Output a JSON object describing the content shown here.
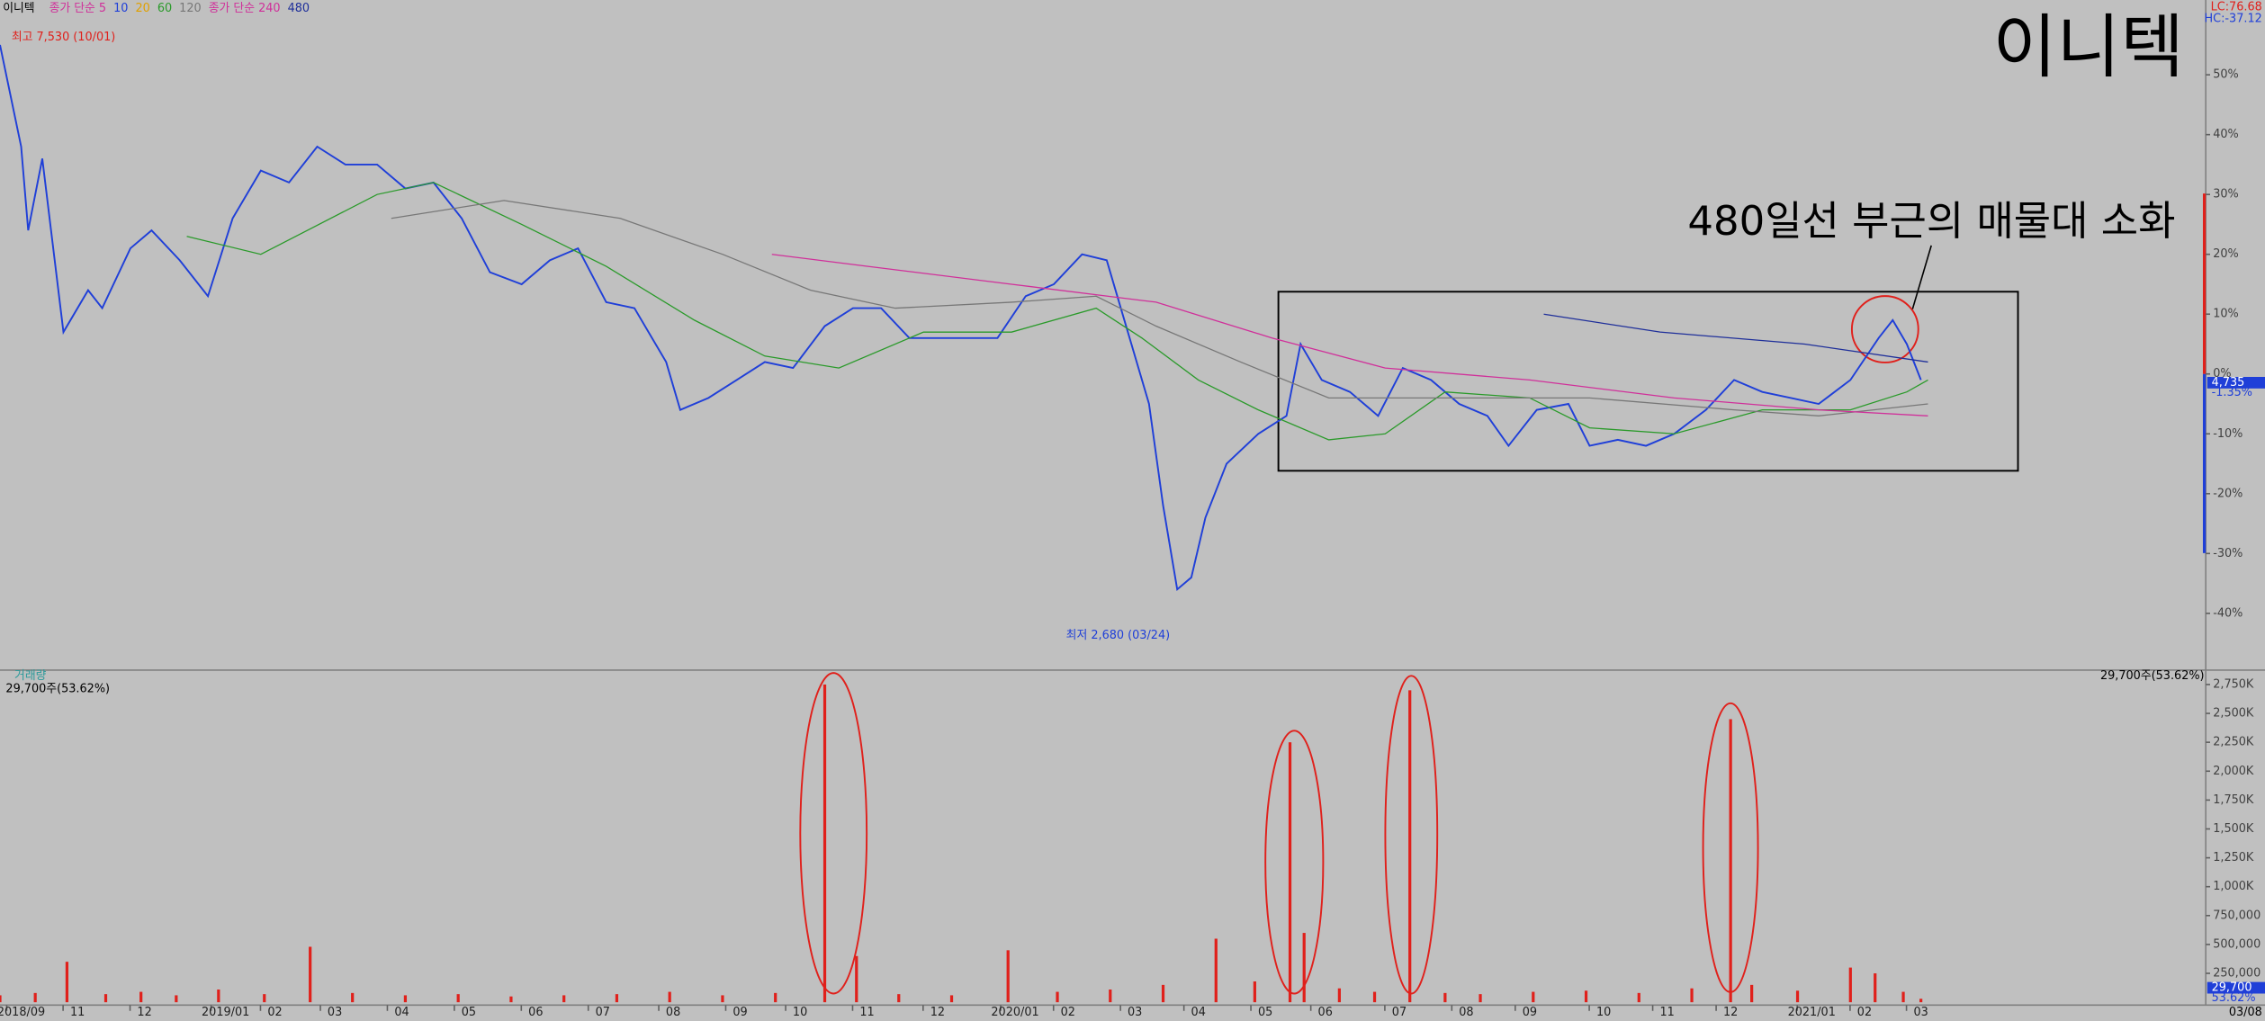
{
  "header": "이니텍",
  "legend": [
    {
      "label": "종가 단순 5",
      "color": "#d0309a"
    },
    {
      "label": "10",
      "color": "#1f3fd8"
    },
    {
      "label": "20",
      "color": "#e0a000"
    },
    {
      "label": "60",
      "color": "#2a9a2a"
    },
    {
      "label": "120",
      "color": "#777777"
    },
    {
      "label": "종가 단순 240",
      "color": "#d0309a"
    },
    {
      "label": "480",
      "color": "#1f2f9a"
    }
  ],
  "lc_label": "LC:76.68",
  "hc_label": "HC:-37.12",
  "chart_data": [
    {
      "type": "line",
      "title": "이니텍",
      "annotation": "480일선 부근의 매물대 소화",
      "high_label": "최고 7,530 (10/01)",
      "low_label": "최저 2,680 (03/24)",
      "last_price_label": "4,735",
      "last_change_label": "-1.35%",
      "xlim": [
        0,
        625
      ],
      "ylim": [
        -49,
        62.5
      ],
      "yticks": [
        {
          "value": 50,
          "label": "50%"
        },
        {
          "value": 40,
          "label": "40%"
        },
        {
          "value": 30,
          "label": "30%"
        },
        {
          "value": 20,
          "label": "20%"
        },
        {
          "value": 10,
          "label": "10%"
        },
        {
          "value": 0,
          "label": "0%"
        },
        {
          "value": -10,
          "label": "-10%"
        },
        {
          "value": -20,
          "label": "-20%"
        },
        {
          "value": -30,
          "label": "-30%"
        },
        {
          "value": -40,
          "label": "-40%"
        }
      ],
      "xticks": [
        {
          "value": 6,
          "label": "2018/09"
        },
        {
          "value": 22,
          "label": "11"
        },
        {
          "value": 41,
          "label": "12"
        },
        {
          "value": 64,
          "label": "2019/01"
        },
        {
          "value": 78,
          "label": "02"
        },
        {
          "value": 95,
          "label": "03"
        },
        {
          "value": 114,
          "label": "04"
        },
        {
          "value": 133,
          "label": "05"
        },
        {
          "value": 152,
          "label": "06"
        },
        {
          "value": 171,
          "label": "07"
        },
        {
          "value": 191,
          "label": "08"
        },
        {
          "value": 210,
          "label": "09"
        },
        {
          "value": 227,
          "label": "10"
        },
        {
          "value": 246,
          "label": "11"
        },
        {
          "value": 266,
          "label": "12"
        },
        {
          "value": 288,
          "label": "2020/01"
        },
        {
          "value": 303,
          "label": "02"
        },
        {
          "value": 322,
          "label": "03"
        },
        {
          "value": 340,
          "label": "04"
        },
        {
          "value": 359,
          "label": "05"
        },
        {
          "value": 376,
          "label": "06"
        },
        {
          "value": 397,
          "label": "07"
        },
        {
          "value": 416,
          "label": "08"
        },
        {
          "value": 434,
          "label": "09"
        },
        {
          "value": 455,
          "label": "10"
        },
        {
          "value": 473,
          "label": "11"
        },
        {
          "value": 491,
          "label": "12"
        },
        {
          "value": 514,
          "label": "2021/01"
        },
        {
          "value": 529,
          "label": "02"
        },
        {
          "value": 545,
          "label": "03"
        }
      ],
      "last_date": "03/08",
      "series": [
        {
          "color": "#1f3fd8",
          "width": 1.2,
          "x": [
            0,
            6,
            8,
            12,
            18,
            25,
            29,
            37,
            43,
            51,
            59,
            66,
            74,
            82,
            90,
            98,
            107,
            115,
            123,
            131,
            139,
            148,
            156,
            164,
            172,
            180,
            189,
            193,
            201,
            209,
            217,
            225,
            234,
            242,
            250,
            258,
            270,
            283,
            291,
            299,
            307,
            314,
            320,
            326,
            330,
            334,
            338,
            342,
            348,
            357,
            365,
            369,
            375,
            383,
            391,
            398,
            406,
            414,
            422,
            428,
            436,
            445,
            451,
            459,
            467,
            475,
            484,
            492,
            500,
            508,
            516,
            525,
            533,
            537,
            541,
            545
          ],
          "values": [
            55,
            38,
            24,
            36,
            7,
            14,
            11,
            21,
            24,
            19,
            13,
            26,
            34,
            32,
            38,
            35,
            35,
            31,
            32,
            26,
            17,
            15,
            19,
            21,
            12,
            11,
            2,
            -6,
            -4,
            -1,
            2,
            1,
            8,
            11,
            11,
            6,
            6,
            6,
            13,
            15,
            20,
            19,
            7,
            -5,
            -22,
            -36,
            -34,
            -24,
            -15,
            -10,
            -7,
            5,
            -1,
            -3,
            -7,
            1,
            -1,
            -5,
            -7,
            -12,
            -6,
            -5,
            -12,
            -11,
            -12,
            -10,
            -6,
            -1,
            -3,
            -4,
            -5,
            -1,
            6,
            9,
            5,
            -1
          ]
        },
        {
          "color": "#2a9a2a",
          "width": 0.8,
          "x": [
            53,
            74,
            107,
            123,
            148,
            172,
            197,
            217,
            238,
            262,
            287,
            311,
            324,
            340,
            357,
            377,
            393,
            410,
            434,
            451,
            475,
            500,
            525,
            541,
            547
          ],
          "values": [
            23,
            20,
            30,
            32,
            25,
            18,
            9,
            3,
            1,
            7,
            7,
            11,
            6,
            -1,
            -6,
            -11,
            -10,
            -3,
            -4,
            -9,
            -10,
            -6,
            -6,
            -3,
            -1
          ]
        },
        {
          "color": "#777777",
          "width": 0.8,
          "x": [
            111,
            143,
            176,
            205,
            230,
            254,
            287,
            311,
            328,
            352,
            377,
            410,
            451,
            492,
            516,
            547
          ],
          "values": [
            26,
            29,
            26,
            20,
            14,
            11,
            12,
            13,
            8,
            2,
            -4,
            -4,
            -4,
            -6,
            -7,
            -5
          ]
        },
        {
          "color": "#d0309a",
          "width": 0.8,
          "x": [
            219,
            246,
            287,
            328,
            361,
            393,
            434,
            475,
            516,
            547
          ],
          "values": [
            20,
            18,
            15,
            12,
            6,
            1,
            -1,
            -4,
            -6,
            -7
          ]
        },
        {
          "color": "#1f2f9a",
          "width": 0.8,
          "x": [
            438,
            471,
            512,
            547
          ],
          "values": [
            10,
            7,
            5,
            2
          ]
        }
      ]
    },
    {
      "type": "bar",
      "title": "거래량",
      "subtitle": "29,700주(53.62%)",
      "last_volume_label": "29,700",
      "last_ratio_label": "53.62%",
      "color": "#e0201b",
      "xlim": [
        0,
        625
      ],
      "ylim": [
        0,
        2825000
      ],
      "yticks": [
        {
          "value": 250000,
          "label": "250,000"
        },
        {
          "value": 500000,
          "label": "500,000"
        },
        {
          "value": 750000,
          "label": "750,000"
        },
        {
          "value": 1000000,
          "label": "1,000K"
        },
        {
          "value": 1250000,
          "label": "1,250K"
        },
        {
          "value": 1500000,
          "label": "1,500K"
        },
        {
          "value": 1750000,
          "label": "1,750K"
        },
        {
          "value": 2000000,
          "label": "2,000K"
        },
        {
          "value": 2250000,
          "label": "2,250K"
        },
        {
          "value": 2500000,
          "label": "2,500K"
        },
        {
          "value": 2750000,
          "label": "2,750K"
        }
      ],
      "x": [
        0,
        10,
        19,
        30,
        40,
        50,
        62,
        75,
        88,
        100,
        115,
        130,
        145,
        160,
        175,
        190,
        205,
        220,
        234,
        243,
        255,
        270,
        286,
        300,
        315,
        330,
        345,
        356,
        366,
        370,
        380,
        390,
        400,
        410,
        420,
        435,
        450,
        465,
        480,
        491,
        497,
        510,
        525,
        532,
        540,
        545
      ],
      "values": [
        60000,
        80000,
        350000,
        70000,
        90000,
        60000,
        110000,
        70000,
        480000,
        80000,
        60000,
        70000,
        50000,
        60000,
        70000,
        90000,
        60000,
        80000,
        2750000,
        400000,
        70000,
        60000,
        450000,
        90000,
        110000,
        150000,
        550000,
        180000,
        2250000,
        600000,
        120000,
        90000,
        2700000,
        80000,
        70000,
        90000,
        100000,
        80000,
        120000,
        2450000,
        150000,
        100000,
        300000,
        250000,
        90000,
        29700
      ]
    }
  ]
}
